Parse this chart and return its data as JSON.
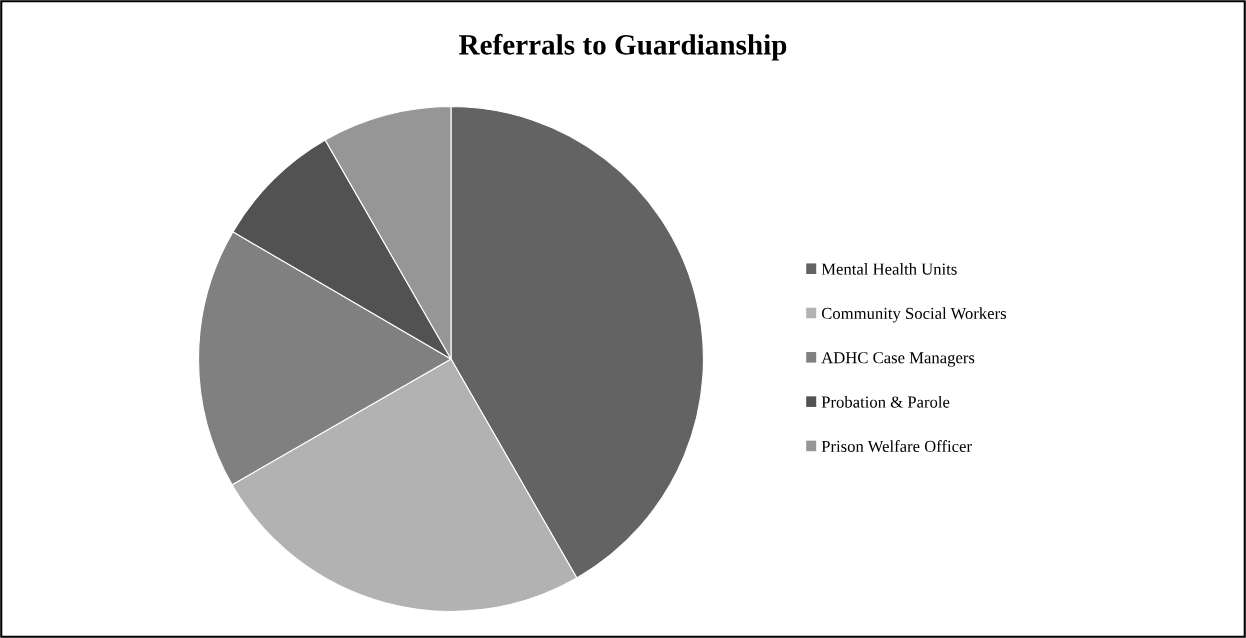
{
  "chart_data": {
    "type": "pie",
    "title": "Referrals to Guardianship",
    "categories": [
      "Mental Health Units",
      "Community Social Workers",
      "ADHC Case Managers",
      "Probation & Parole",
      "Prison Welfare Officer"
    ],
    "values": [
      41.7,
      25,
      16.7,
      8.3,
      8.3
    ],
    "colors": [
      "#636363",
      "#b2b2b2",
      "#808080",
      "#525252",
      "#969696"
    ],
    "legend": "right"
  }
}
